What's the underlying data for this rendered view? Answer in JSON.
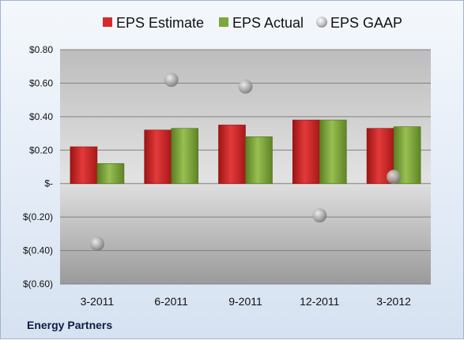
{
  "chart_data": {
    "type": "bar",
    "categories": [
      "3-2011",
      "6-2011",
      "9-2011",
      "12-2011",
      "3-2012"
    ],
    "series": [
      {
        "name": "EPS Estimate",
        "kind": "bar",
        "color": "#d62b2b",
        "values": [
          0.22,
          0.32,
          0.35,
          0.38,
          0.33
        ]
      },
      {
        "name": "EPS Actual",
        "kind": "bar",
        "color": "#7fa63a",
        "values": [
          0.12,
          0.33,
          0.28,
          0.38,
          0.34
        ]
      },
      {
        "name": "EPS GAAP",
        "kind": "marker",
        "color": "#a9a9a9",
        "values": [
          -0.36,
          0.62,
          0.58,
          -0.19,
          0.04
        ]
      }
    ],
    "ylim": [
      -0.6,
      0.8
    ],
    "yticks": [
      0.8,
      0.6,
      0.4,
      0.2,
      0,
      -0.2,
      -0.4,
      -0.6
    ],
    "ytick_labels": [
      "$0.80",
      "$0.60",
      "$0.40",
      "$0.20",
      "$-",
      "$(0.20)",
      "$(0.40)",
      "$(0.60)"
    ],
    "grid": true,
    "legend_position": "top"
  },
  "footer": {
    "company": "Energy Partners"
  }
}
